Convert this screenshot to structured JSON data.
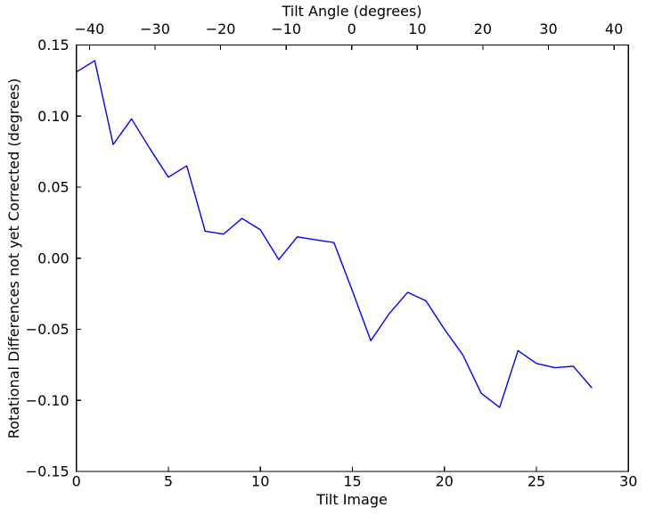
{
  "figure": {
    "background": "#ffffff",
    "text_color": "#000000",
    "top_axis_title": "Tilt Angle (degrees)",
    "bottom_axis_title": "Tilt Image",
    "y_axis_title": "Rotational Differences not yet Corrected (degrees)"
  },
  "chart_data": {
    "type": "line",
    "title": "",
    "xlabel": "Tilt Image",
    "xlabel_top": "Tilt Angle (degrees)",
    "ylabel": "Rotational Differences not yet Corrected (degrees)",
    "grid": false,
    "legend": null,
    "line_color": "#0000ff",
    "axis_color": "#000000",
    "series": [
      {
        "name": "rotational-differences-not-yet-corrected",
        "color": "#0000ff",
        "x": [
          0,
          1,
          2,
          3,
          4,
          5,
          6,
          7,
          8,
          9,
          10,
          11,
          12,
          13,
          14,
          15,
          16,
          17,
          18,
          19,
          20,
          21,
          22,
          23,
          24,
          25,
          26,
          27,
          28
        ],
        "y": [
          0.131,
          0.139,
          0.08,
          0.098,
          0.077,
          0.057,
          0.065,
          0.019,
          0.017,
          0.028,
          0.02,
          -0.001,
          0.015,
          0.013,
          0.011,
          -0.023,
          -0.058,
          -0.039,
          -0.024,
          -0.03,
          -0.05,
          -0.068,
          -0.095,
          -0.105,
          -0.065,
          -0.074,
          -0.077,
          -0.076,
          -0.091
        ]
      }
    ],
    "x_axis_bottom": {
      "lim": [
        0,
        30
      ],
      "ticks": [
        {
          "v": 0,
          "label": "0"
        },
        {
          "v": 5,
          "label": "5"
        },
        {
          "v": 10,
          "label": "10"
        },
        {
          "v": 15,
          "label": "15"
        },
        {
          "v": 20,
          "label": "20"
        },
        {
          "v": 25,
          "label": "25"
        },
        {
          "v": 30,
          "label": "30"
        }
      ]
    },
    "x_axis_top": {
      "lim": [
        -42.0,
        42.2
      ],
      "ticks": [
        {
          "v": -40,
          "label": "−40"
        },
        {
          "v": -30,
          "label": "−30"
        },
        {
          "v": -20,
          "label": "−20"
        },
        {
          "v": -10,
          "label": "−10"
        },
        {
          "v": 0,
          "label": "0"
        },
        {
          "v": 10,
          "label": "10"
        },
        {
          "v": 20,
          "label": "20"
        },
        {
          "v": 30,
          "label": "30"
        },
        {
          "v": 40,
          "label": "40"
        }
      ]
    },
    "y_axis": {
      "lim": [
        -0.15,
        0.15
      ],
      "ticks": [
        {
          "v": 0.15,
          "label": "0.15"
        },
        {
          "v": 0.1,
          "label": "0.10"
        },
        {
          "v": 0.05,
          "label": "0.05"
        },
        {
          "v": 0.0,
          "label": "0.00"
        },
        {
          "v": -0.05,
          "label": "−0.05"
        },
        {
          "v": -0.1,
          "label": "−0.10"
        },
        {
          "v": -0.15,
          "label": "−0.15"
        }
      ]
    }
  }
}
